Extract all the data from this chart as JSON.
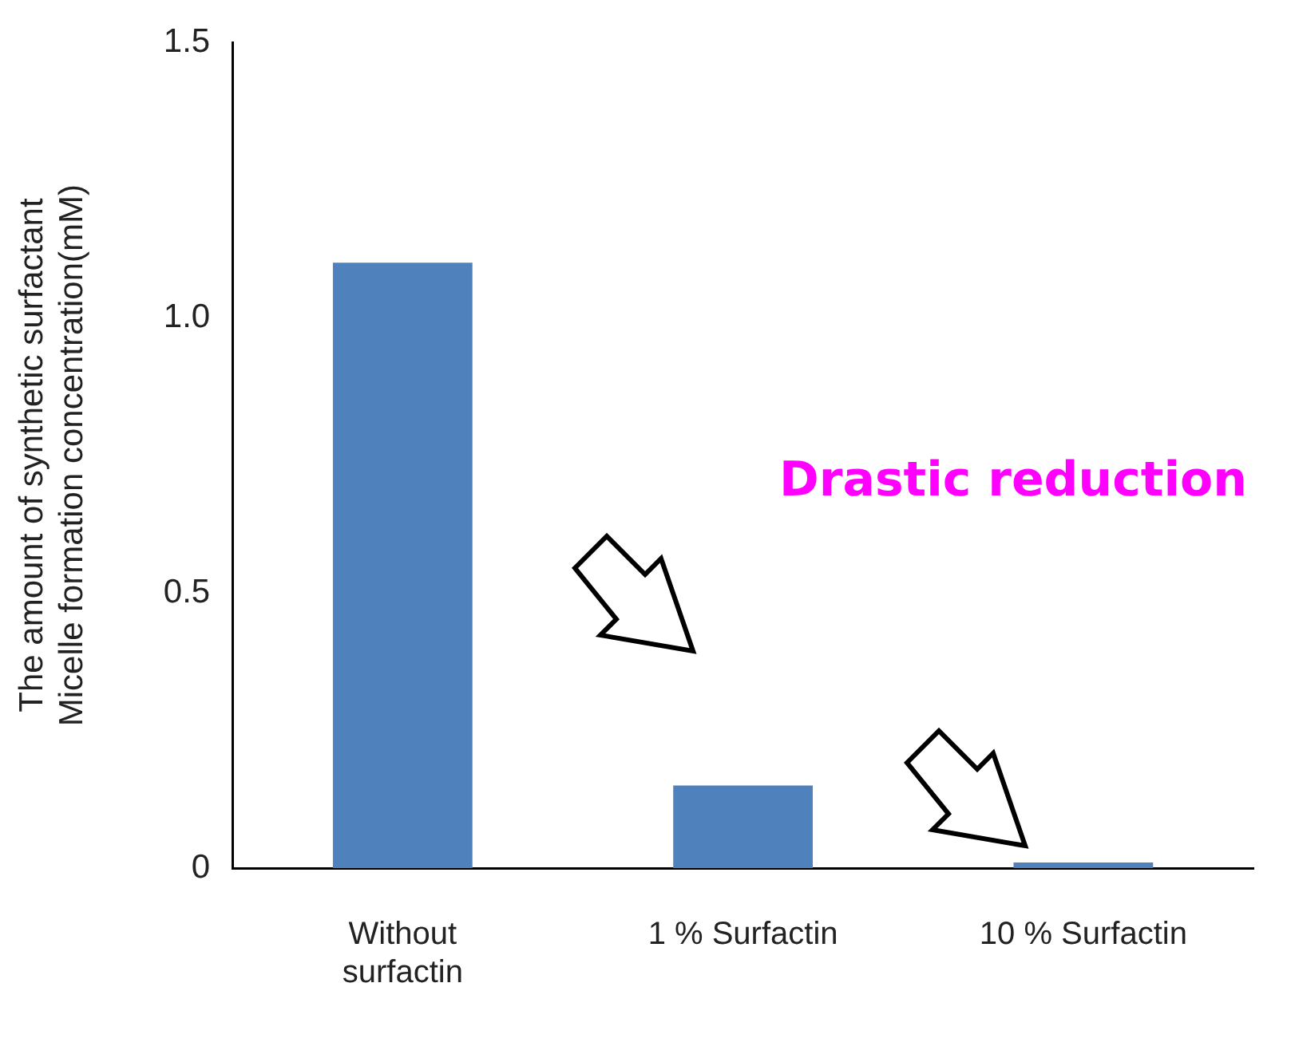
{
  "chart_data": {
    "type": "bar",
    "ylabel": "The amount of synthetic surfactant\nMicelle formation concentration(mM)",
    "categories": [
      "Without\nsurfactin",
      "1 % Surfactin",
      "10 % Surfactin"
    ],
    "values": [
      1.1,
      0.15,
      0.01
    ],
    "color": "#4f81bd",
    "ylim": [
      0,
      1.5
    ],
    "yticks": [
      {
        "value": 0,
        "label": "0"
      },
      {
        "value": 0.5,
        "label": "0.5"
      },
      {
        "value": 1,
        "label": "1.0"
      },
      {
        "value": 1.5,
        "label": "1.5"
      }
    ],
    "grid": false,
    "legend": false,
    "annotations": [
      "Drastic reduction"
    ]
  }
}
